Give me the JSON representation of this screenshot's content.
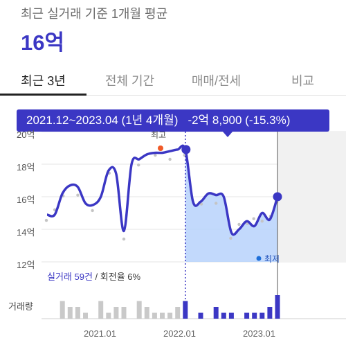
{
  "header": {
    "subtitle": "최근 실거래 기준 1개월 평균",
    "price": "16억"
  },
  "tabs": [
    {
      "label": "최근 3년",
      "active": true
    },
    {
      "label": "전체 기간",
      "active": false
    },
    {
      "label": "매매/전세",
      "active": false
    },
    {
      "label": "비교",
      "active": false
    }
  ],
  "tooltip": {
    "period": "2021.12~2023.04 (1년 4개월)",
    "change": "-2억 8,900 (-15.3%)"
  },
  "chart": {
    "max_label": "최고",
    "min_label": "최저",
    "stats_trades": "실거래 59건",
    "stats_sep": "/",
    "stats_turnover": "회전율 6%",
    "volume_label": "거래량",
    "y_ticks": [
      "12억",
      "14억",
      "16억",
      "18억",
      "20억"
    ],
    "x_ticks": [
      "2021.01",
      "2022.01",
      "2023.01"
    ],
    "colors": {
      "line": "#3b37c4",
      "fill": "#b7d2fb",
      "max": "#f05a28",
      "min": "#1e6fd9"
    }
  },
  "chart_data": {
    "type": "line",
    "y_unit": "억",
    "ylim": [
      12,
      20
    ],
    "x_start": "2020.04",
    "series": [
      {
        "name": "price",
        "values": [
          14.9,
          14.9,
          16.2,
          16.7,
          16.6,
          15.6,
          15.5,
          16.0,
          17.6,
          17.4,
          13.9,
          18.0,
          18.3,
          18.6,
          18.7,
          18.7,
          18.8,
          18.9,
          18.9,
          15.7,
          15.7,
          16.2,
          16.1,
          16.0,
          13.8,
          14.0,
          14.5,
          14.2,
          15.0,
          14.6,
          16.0
        ]
      }
    ],
    "volume": [
      0,
      0,
      3,
      2,
      2,
      1,
      0,
      3,
      1,
      2,
      2,
      0,
      3,
      2,
      1,
      1,
      1,
      2,
      3,
      0,
      1,
      0,
      2,
      1,
      1,
      0,
      1,
      1,
      1,
      2,
      4
    ]
  }
}
